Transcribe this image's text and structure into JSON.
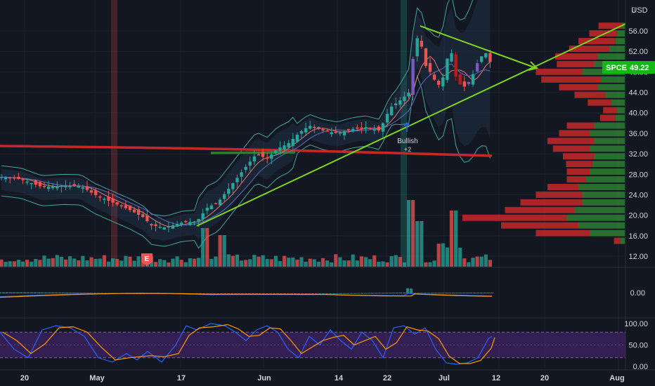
{
  "currency": "USD",
  "symbol_badge": {
    "symbol": "SPCE",
    "price": "49.22"
  },
  "annotation": {
    "label": "Bullish",
    "count": "+2"
  },
  "earnings_marker": "E",
  "colors": {
    "background": "#131722",
    "grid": "#1e222d",
    "up": "#26a69a",
    "down": "#ef5350",
    "trendline": "#7ed321",
    "ma_long": "#c62828",
    "rsi_band": "#5b2a8c",
    "macd_line": "#2962ff",
    "signal_line": "#ff9800"
  },
  "main_axis": {
    "ticks": [
      "56.00",
      "52.00",
      "48.00",
      "44.00",
      "40.00",
      "36.00",
      "32.00",
      "28.00",
      "24.00",
      "20.00",
      "16.00",
      "12.00"
    ]
  },
  "macd_axis": {
    "ticks": [
      "0.00"
    ]
  },
  "rsi_axis": {
    "ticks": [
      "100.00",
      "50.00",
      "0.00"
    ]
  },
  "time_axis": {
    "labels": [
      "20",
      "May",
      "17",
      "Jun",
      "14",
      "22",
      "Jul",
      "12",
      "20",
      "Aug"
    ]
  },
  "chart_data": {
    "type": "candlestick",
    "symbol": "SPCE",
    "ylim": [
      10,
      59
    ],
    "volume_profile": [
      {
        "price": 57,
        "up": 4,
        "down": 30
      },
      {
        "price": 55.5,
        "up": 10,
        "down": 36
      },
      {
        "price": 54,
        "up": 12,
        "down": 48
      },
      {
        "price": 52.5,
        "up": 20,
        "down": 52
      },
      {
        "price": 51,
        "up": 35,
        "down": 55
      },
      {
        "price": 49.5,
        "up": 40,
        "down": 48
      },
      {
        "price": 48,
        "up": 55,
        "down": 60
      },
      {
        "price": 46.5,
        "up": 30,
        "down": 78
      },
      {
        "price": 45,
        "up": 35,
        "down": 50
      },
      {
        "price": 43.5,
        "up": 25,
        "down": 40
      },
      {
        "price": 42,
        "up": 18,
        "down": 30
      },
      {
        "price": 40.5,
        "up": 10,
        "down": 18
      },
      {
        "price": 39,
        "up": 12,
        "down": 20
      },
      {
        "price": 37.5,
        "up": 40,
        "down": 35
      },
      {
        "price": 36,
        "up": 45,
        "down": 40
      },
      {
        "price": 34.5,
        "up": 40,
        "down": 60
      },
      {
        "price": 33,
        "up": 45,
        "down": 48
      },
      {
        "price": 31.5,
        "up": 40,
        "down": 40
      },
      {
        "price": 30,
        "up": 42,
        "down": 34
      },
      {
        "price": 28.5,
        "up": 45,
        "down": 30
      },
      {
        "price": 27,
        "up": 50,
        "down": 25
      },
      {
        "price": 25.5,
        "up": 60,
        "down": 40
      },
      {
        "price": 24,
        "up": 55,
        "down": 60
      },
      {
        "price": 22.5,
        "up": 55,
        "down": 80
      },
      {
        "price": 21,
        "up": 65,
        "down": 90
      },
      {
        "price": 19.5,
        "up": 75,
        "down": 135
      },
      {
        "price": 18,
        "up": 60,
        "down": 100
      },
      {
        "price": 16.5,
        "up": 45,
        "down": 70
      },
      {
        "price": 15,
        "up": 6,
        "down": 8
      }
    ]
  }
}
